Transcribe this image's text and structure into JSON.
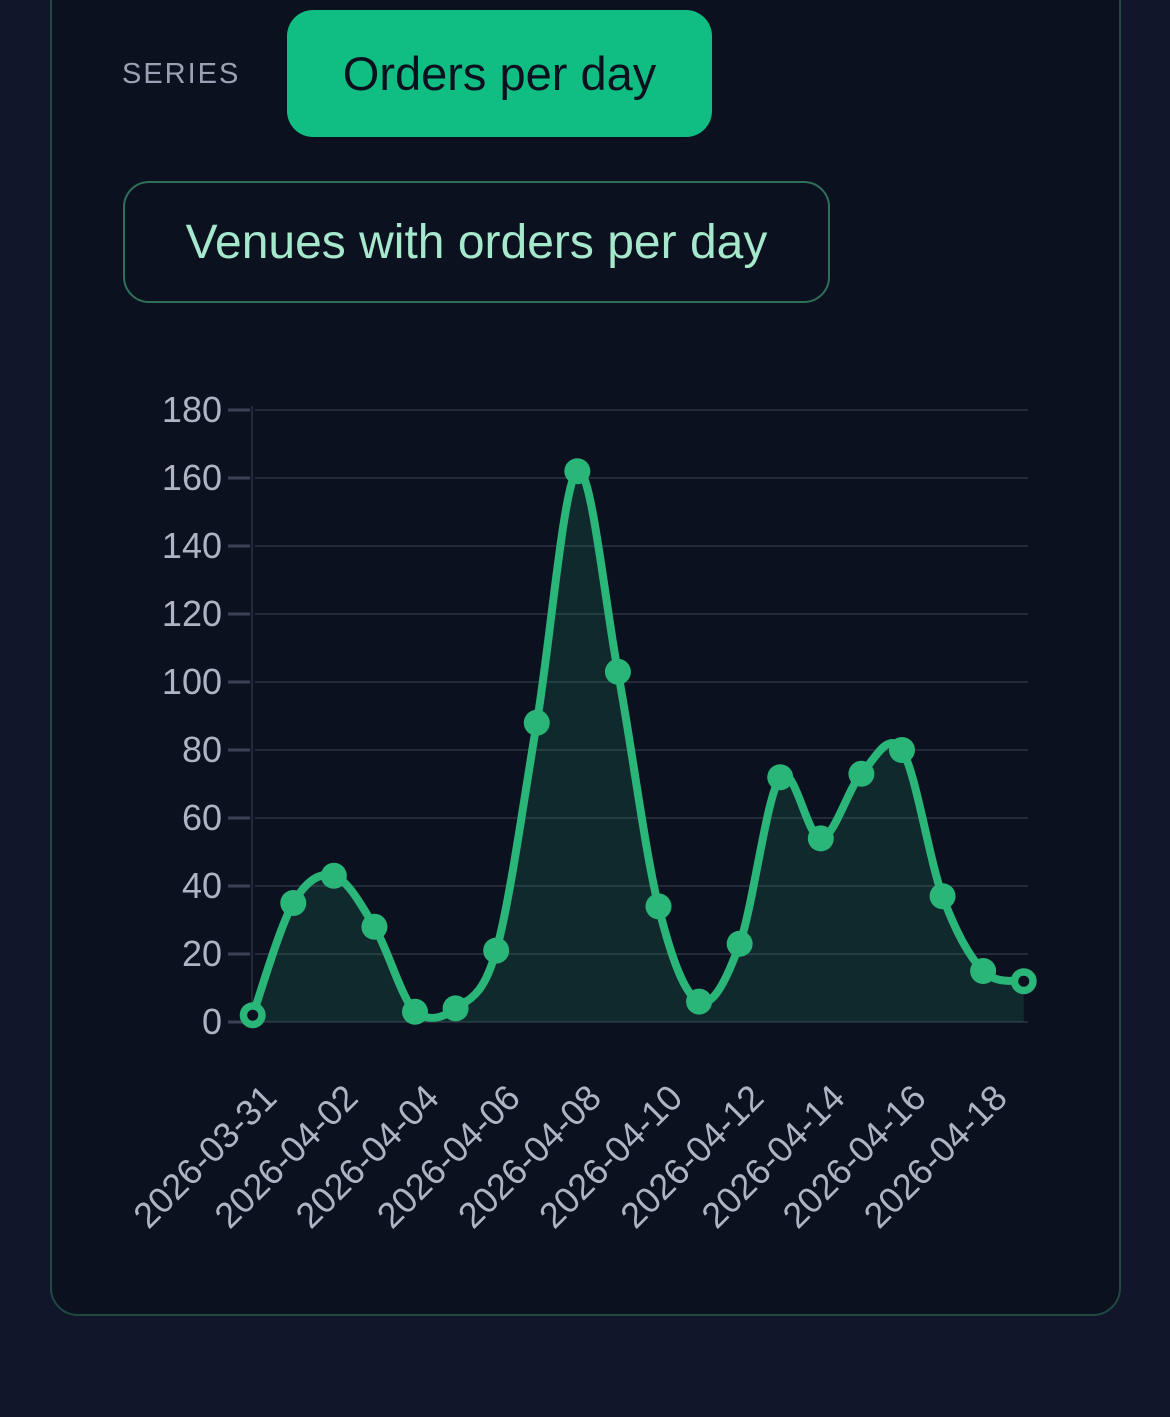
{
  "series": {
    "label": "SERIES",
    "selected": "Orders per day"
  },
  "title": "Venues with orders per day",
  "colors": {
    "page_bg": "#11162a",
    "panel_bg": "#0c1120",
    "panel_border": "#1f4a41",
    "accent_chip": "#10bd82",
    "chip_text": "#0a101e",
    "title_text": "#a5e8cc",
    "title_border": "#2f6f5a",
    "axis_text": "#aeb4c4",
    "grid_line": "#242a39",
    "tick_mark": "#3c4253",
    "line": "#2ab678"
  },
  "chart_data": {
    "type": "area",
    "title": "Venues with orders per day",
    "series_name": "Orders per day",
    "x": [
      "2026-03-31",
      "2026-04-01",
      "2026-04-02",
      "2026-04-03",
      "2026-04-04",
      "2026-04-05",
      "2026-04-06",
      "2026-04-07",
      "2026-04-08",
      "2026-04-09",
      "2026-04-10",
      "2026-04-11",
      "2026-04-12",
      "2026-04-13",
      "2026-04-14",
      "2026-04-15",
      "2026-04-16",
      "2026-04-17",
      "2026-04-18",
      "2026-04-19"
    ],
    "values": [
      2,
      35,
      43,
      28,
      3,
      4,
      21,
      88,
      162,
      103,
      34,
      6,
      23,
      72,
      54,
      73,
      80,
      37,
      15,
      12
    ],
    "x_tick_step": 2,
    "y_ticks": [
      0,
      20,
      40,
      60,
      80,
      100,
      120,
      140,
      160,
      180
    ],
    "ylim": [
      0,
      180
    ],
    "grid": "horizontal",
    "legend": "none",
    "marker": "circle",
    "endpoint_marker": "ring",
    "fill_opacity": 0.15
  }
}
